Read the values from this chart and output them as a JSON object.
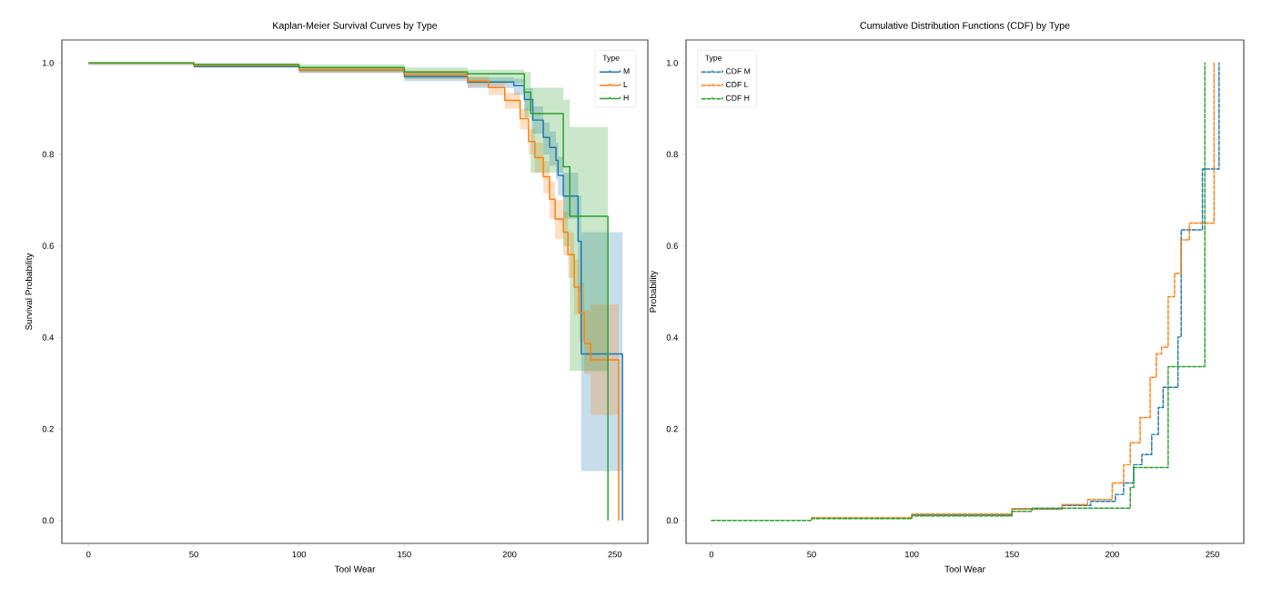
{
  "chart_data": [
    {
      "type": "step",
      "title": "Kaplan-Meier Survival Curves by Type",
      "xlabel": "Tool Wear",
      "ylabel": "Survival Probability",
      "legend_title": "Type",
      "legend": "top right",
      "line_style": "solid",
      "xlim": [
        -12.65,
        265.65
      ],
      "ylim": [
        -0.05,
        1.05
      ],
      "xticks": [
        0,
        50,
        100,
        150,
        200,
        250
      ],
      "yticks": [
        {
          "value": 0,
          "label": "0.0"
        },
        {
          "value": 0.2,
          "label": "0.2"
        },
        {
          "value": 0.4,
          "label": "0.4"
        },
        {
          "value": 0.6,
          "label": "0.6"
        },
        {
          "value": 0.8,
          "label": "0.8"
        },
        {
          "value": 1,
          "label": "1.0"
        }
      ],
      "series": [
        {
          "name": "M",
          "color": "#1f77b4",
          "x": [
            0,
            50,
            100,
            150,
            180,
            202,
            207,
            211,
            216,
            219,
            222,
            223,
            225.5,
            232.5,
            234,
            253.6
          ],
          "values": [
            null,
            0.992,
            0.985,
            0.97,
            0.958,
            0.95,
            0.92,
            0.875,
            0.837,
            0.815,
            0.787,
            0.754,
            0.709,
            0.61,
            0.364,
            0
          ],
          "lower": [
            0.995,
            0.99,
            0.978,
            0.96,
            0.945,
            0.93,
            0.895,
            0.845,
            0.8,
            0.775,
            0.745,
            0.71,
            0.66,
            0.5,
            0.108,
            0.108
          ],
          "upper": [
            1,
            0.998,
            0.99,
            0.978,
            0.968,
            0.965,
            0.945,
            0.905,
            0.87,
            0.85,
            0.825,
            0.795,
            0.76,
            0.71,
            0.63,
            0.63
          ]
        },
        {
          "name": "L",
          "color": "#ff7f0e",
          "x": [
            0,
            50,
            100,
            150,
            180,
            190,
            197.7,
            205,
            209,
            212,
            216,
            219,
            221.6,
            225.5,
            227.7,
            230.7,
            233,
            235.5,
            238.5,
            251.8
          ],
          "values": [
            1,
            0.994,
            0.985,
            0.975,
            0.96,
            0.946,
            0.918,
            0.878,
            0.828,
            0.793,
            0.751,
            0.702,
            0.659,
            0.63,
            0.581,
            0.51,
            0.454,
            0.387,
            0.351,
            0
          ],
          "lower": [
            0.996,
            0.99,
            0.978,
            0.965,
            0.948,
            0.93,
            0.9,
            0.855,
            0.8,
            0.76,
            0.715,
            0.66,
            0.615,
            0.58,
            0.53,
            0.45,
            0.39,
            0.32,
            0.231,
            0.231
          ],
          "upper": [
            1,
            0.997,
            0.99,
            0.983,
            0.97,
            0.96,
            0.935,
            0.9,
            0.855,
            0.825,
            0.785,
            0.74,
            0.7,
            0.675,
            0.63,
            0.57,
            0.52,
            0.46,
            0.472,
            0.472
          ]
        },
        {
          "name": "H",
          "color": "#2ca02c",
          "x": [
            0,
            50,
            100,
            150,
            180,
            207,
            210,
            225.5,
            228.6,
            246.7
          ],
          "values": [
            1,
            0.996,
            0.99,
            0.98,
            0.976,
            0.936,
            0.889,
            0.773,
            0.665,
            0
          ],
          "lower": [
            0.998,
            0.99,
            0.98,
            0.965,
            0.955,
            0.88,
            0.76,
            0.6,
            0.327,
            0.327
          ],
          "upper": [
            1,
            1,
            0.997,
            0.99,
            0.985,
            0.98,
            0.946,
            0.92,
            0.86,
            0.86
          ]
        }
      ]
    },
    {
      "type": "step",
      "title": "Cumulative Distribution Functions (CDF) by Type",
      "xlabel": "Tool Wear",
      "ylabel": "Probability",
      "legend_title": "Type",
      "legend": "top left",
      "line_style": "dashed",
      "xlim": [
        -12.65,
        265.65
      ],
      "ylim": [
        -0.05,
        1.05
      ],
      "xticks": [
        0,
        50,
        100,
        150,
        200,
        250
      ],
      "yticks": [
        {
          "value": 0,
          "label": "0.0"
        },
        {
          "value": 0.2,
          "label": "0.2"
        },
        {
          "value": 0.4,
          "label": "0.4"
        },
        {
          "value": 0.6,
          "label": "0.6"
        },
        {
          "value": 0.8,
          "label": "0.8"
        },
        {
          "value": 1,
          "label": "1.0"
        }
      ],
      "series": [
        {
          "name": "CDF M",
          "color": "#1f77b4",
          "x": [
            100,
            150,
            175,
            189.3,
            201.6,
            205.7,
            210.7,
            214.8,
            219.7,
            223,
            225.4,
            232.8,
            234.4,
            245,
            253.3
          ],
          "values": [
            0.012,
            0.025,
            0.033,
            0.042,
            0.057,
            0.082,
            0.122,
            0.144,
            0.188,
            0.247,
            0.291,
            0.401,
            0.635,
            0.768,
            1
          ]
        },
        {
          "name": "CDF L",
          "color": "#ff7f0e",
          "x": [
            50,
            100,
            150,
            175,
            187.7,
            200,
            205.7,
            209,
            213.9,
            218.9,
            222,
            224.6,
            227.9,
            231.1,
            234.4,
            238.5,
            245.9,
            250.8
          ],
          "values": [
            0.006,
            0.014,
            0.026,
            0.035,
            0.046,
            0.082,
            0.122,
            0.17,
            0.225,
            0.313,
            0.364,
            0.379,
            0.489,
            0.54,
            0.613,
            0.65,
            0.65,
            1
          ]
        },
        {
          "name": "CDF H",
          "color": "#2ca02c",
          "x": [
            0,
            50,
            100,
            150,
            160,
            205,
            209,
            210.7,
            224.6,
            227.9,
            240,
            246.2
          ],
          "values": [
            0,
            0.004,
            0.01,
            0.02,
            0.027,
            0.027,
            0.072,
            0.116,
            0.116,
            0.336,
            0.336,
            1
          ]
        }
      ]
    }
  ]
}
